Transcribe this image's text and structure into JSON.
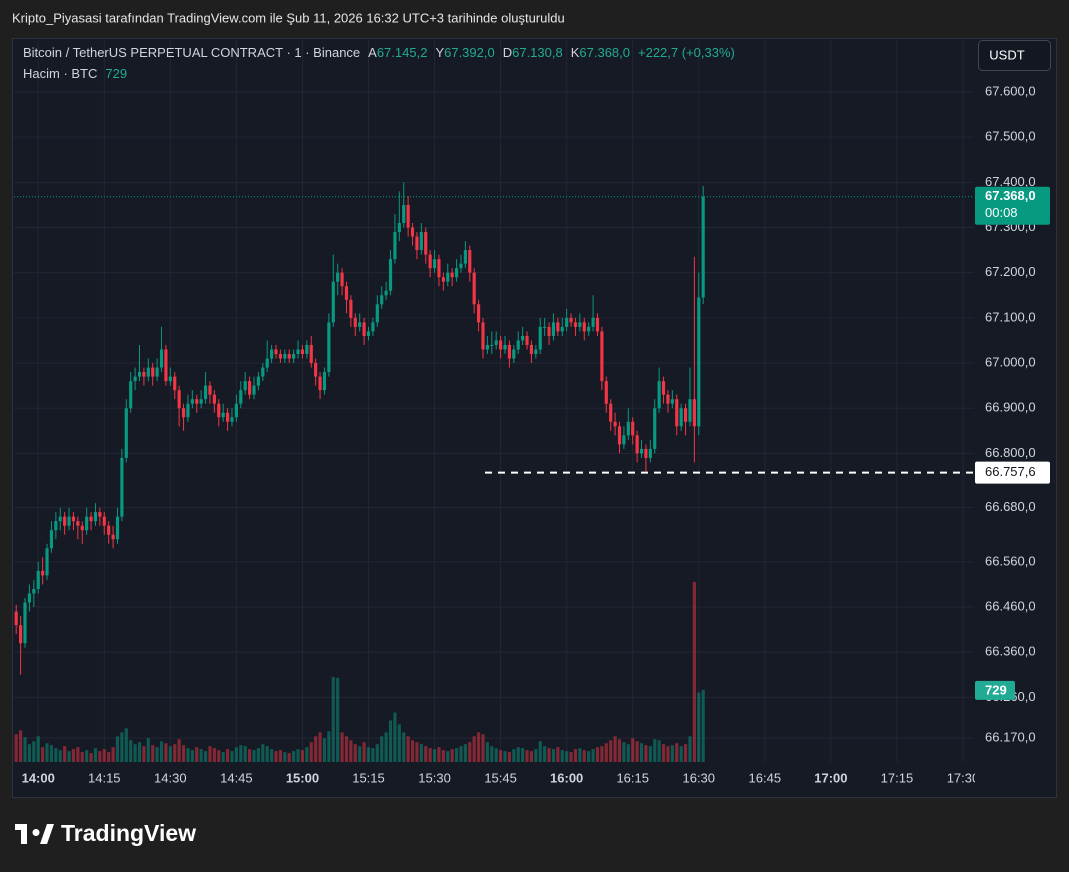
{
  "header": "Kripto_Piyasasi tarafından TradingView.com ile Şub 11, 2026 16:32 UTC+3 tarihinde oluşturuldu",
  "currency_button": "USDT",
  "footer": {
    "brand": "TradingView"
  },
  "chart_data": {
    "type": "candlestick",
    "legend": {
      "symbol": "Bitcoin / TetherUS PERPETUAL CONTRACT · 1 · Binance",
      "ohlc": [
        {
          "label": "A",
          "value": "67.145,2"
        },
        {
          "label": "Y",
          "value": "67.392,0"
        },
        {
          "label": "D",
          "value": "67.130,8"
        },
        {
          "label": "K",
          "value": "67.368,0"
        }
      ],
      "change": "+222,7 (+0,33%)",
      "volume_label": "Hacim · BTC"
    },
    "up_color": "#089981",
    "down_color": "#f23645",
    "grid": true,
    "xlim": [
      -0.5,
      217.5
    ],
    "xticks": [
      {
        "value": 5,
        "label": "14:00"
      },
      {
        "value": 20,
        "label": "14:15"
      },
      {
        "value": 35,
        "label": "14:30"
      },
      {
        "value": 50,
        "label": "14:45"
      },
      {
        "value": 65,
        "label": "15:00"
      },
      {
        "value": 80,
        "label": "15:15"
      },
      {
        "value": 95,
        "label": "15:30"
      },
      {
        "value": 110,
        "label": "15:45"
      },
      {
        "value": 125,
        "label": "16:00"
      },
      {
        "value": 140,
        "label": "16:15"
      },
      {
        "value": 155,
        "label": "16:30"
      },
      {
        "value": 170,
        "label": "16:45"
      },
      {
        "value": 185,
        "label": "17:00"
      },
      {
        "value": 200,
        "label": "17:15"
      },
      {
        "value": 215,
        "label": "17:30"
      }
    ],
    "ylim": [
      66117,
      67715
    ],
    "yticks": [
      {
        "value": 67600,
        "label": "67.600,0"
      },
      {
        "value": 67500,
        "label": "67.500,0"
      },
      {
        "value": 67400,
        "label": "67.400,0"
      },
      {
        "value": 67300,
        "label": "67.300,0"
      },
      {
        "value": 67200,
        "label": "67.200,0"
      },
      {
        "value": 67100,
        "label": "67.100,0"
      },
      {
        "value": 67000,
        "label": "67.000,0"
      },
      {
        "value": 66900,
        "label": "66.900,0"
      },
      {
        "value": 66800,
        "label": "66.800,0"
      },
      {
        "value": 66680,
        "label": "66.680,0"
      },
      {
        "value": 66560,
        "label": "66.560,0"
      },
      {
        "value": 66460,
        "label": "66.460,0"
      },
      {
        "value": 66360,
        "label": "66.360,0"
      },
      {
        "value": 66260,
        "label": "66.260,0"
      },
      {
        "value": 66170,
        "label": "66.170,0"
      }
    ],
    "y2lim": [
      0,
      7300
    ],
    "last_price": {
      "value": 67368,
      "label": "67.368,0"
    },
    "countdown": "00:08",
    "marker_line": {
      "value": 66757.6,
      "label": "66.757,6"
    },
    "values": [
      [
        66450,
        66465,
        66400,
        66420
      ],
      [
        66420,
        66440,
        66310,
        66380
      ],
      [
        66380,
        66480,
        66370,
        66470
      ],
      [
        66470,
        66510,
        66450,
        66490
      ],
      [
        66490,
        66520,
        66460,
        66500
      ],
      [
        66500,
        66560,
        66490,
        66540
      ],
      [
        66540,
        66570,
        66510,
        66530
      ],
      [
        66530,
        66600,
        66520,
        66590
      ],
      [
        66590,
        66650,
        66580,
        66630
      ],
      [
        66630,
        66670,
        66610,
        66650
      ],
      [
        66650,
        66680,
        66630,
        66660
      ],
      [
        66660,
        66670,
        66620,
        66640
      ],
      [
        66640,
        66680,
        66630,
        66660
      ],
      [
        66660,
        66670,
        66630,
        66650
      ],
      [
        66650,
        66660,
        66610,
        66640
      ],
      [
        66640,
        66650,
        66600,
        66630
      ],
      [
        66630,
        66680,
        66620,
        66660
      ],
      [
        66660,
        66670,
        66630,
        66650
      ],
      [
        66650,
        66690,
        66640,
        66670
      ],
      [
        66670,
        66680,
        66640,
        66660
      ],
      [
        66660,
        66670,
        66620,
        66640
      ],
      [
        66640,
        66650,
        66600,
        66620
      ],
      [
        66620,
        66640,
        66590,
        66610
      ],
      [
        66610,
        66680,
        66600,
        66660
      ],
      [
        66660,
        66810,
        66650,
        66790
      ],
      [
        66790,
        66920,
        66780,
        66900
      ],
      [
        66900,
        66980,
        66890,
        66960
      ],
      [
        66960,
        66990,
        66940,
        66970
      ],
      [
        66970,
        67040,
        66960,
        66980
      ],
      [
        66980,
        66990,
        66950,
        66970
      ],
      [
        66970,
        67010,
        66960,
        66990
      ],
      [
        66990,
        67000,
        66950,
        66970
      ],
      [
        66970,
        67010,
        66960,
        66990
      ],
      [
        66990,
        67080,
        66980,
        67030
      ],
      [
        67030,
        67040,
        66950,
        66960
      ],
      [
        66960,
        66990,
        66950,
        66970
      ],
      [
        66970,
        66980,
        66920,
        66940
      ],
      [
        66940,
        66950,
        66860,
        66900
      ],
      [
        66900,
        66910,
        66850,
        66880
      ],
      [
        66880,
        66930,
        66870,
        66910
      ],
      [
        66910,
        66940,
        66900,
        66920
      ],
      [
        66920,
        66930,
        66890,
        66910
      ],
      [
        66910,
        66940,
        66900,
        66920
      ],
      [
        66920,
        66980,
        66910,
        66950
      ],
      [
        66950,
        66960,
        66910,
        66930
      ],
      [
        66930,
        66940,
        66890,
        66910
      ],
      [
        66910,
        66920,
        66860,
        66880
      ],
      [
        66880,
        66910,
        66870,
        66890
      ],
      [
        66890,
        66900,
        66850,
        66870
      ],
      [
        66870,
        66900,
        66860,
        66880
      ],
      [
        66880,
        66930,
        66870,
        66910
      ],
      [
        66910,
        66960,
        66900,
        66940
      ],
      [
        66940,
        66980,
        66930,
        66960
      ],
      [
        66960,
        66970,
        66920,
        66930
      ],
      [
        66930,
        66970,
        66920,
        66950
      ],
      [
        66950,
        66980,
        66940,
        66970
      ],
      [
        66970,
        67000,
        66960,
        66990
      ],
      [
        66990,
        67050,
        66980,
        67010
      ],
      [
        67010,
        67040,
        67000,
        67030
      ],
      [
        67030,
        67040,
        67010,
        67020
      ],
      [
        67020,
        67030,
        67000,
        67010
      ],
      [
        67010,
        67030,
        67000,
        67020
      ],
      [
        67020,
        67030,
        67000,
        67010
      ],
      [
        67010,
        67030,
        67000,
        67020
      ],
      [
        67020,
        67050,
        67010,
        67030
      ],
      [
        67030,
        67040,
        67010,
        67020
      ],
      [
        67020,
        67050,
        67010,
        67040
      ],
      [
        67040,
        67060,
        66990,
        67000
      ],
      [
        67000,
        67010,
        66950,
        66970
      ],
      [
        66970,
        66980,
        66920,
        66940
      ],
      [
        66940,
        66990,
        66930,
        66980
      ],
      [
        66980,
        67110,
        66970,
        67090
      ],
      [
        67090,
        67240,
        67080,
        67180
      ],
      [
        67180,
        67220,
        67150,
        67200
      ],
      [
        67200,
        67210,
        67150,
        67170
      ],
      [
        67170,
        67180,
        67110,
        67140
      ],
      [
        67140,
        67150,
        67080,
        67100
      ],
      [
        67100,
        67110,
        67060,
        67080
      ],
      [
        67080,
        67110,
        67070,
        67090
      ],
      [
        67090,
        67100,
        67040,
        67060
      ],
      [
        67060,
        67080,
        67050,
        67070
      ],
      [
        67070,
        67100,
        67060,
        67090
      ],
      [
        67090,
        67150,
        67080,
        67130
      ],
      [
        67130,
        67170,
        67120,
        67150
      ],
      [
        67150,
        67180,
        67140,
        67160
      ],
      [
        67160,
        67250,
        67150,
        67230
      ],
      [
        67230,
        67330,
        67220,
        67290
      ],
      [
        67290,
        67380,
        67270,
        67310
      ],
      [
        67310,
        67400,
        67300,
        67350
      ],
      [
        67350,
        67370,
        67280,
        67300
      ],
      [
        67300,
        67310,
        67260,
        67280
      ],
      [
        67280,
        67290,
        67230,
        67250
      ],
      [
        67250,
        67310,
        67240,
        67290
      ],
      [
        67290,
        67300,
        67220,
        67240
      ],
      [
        67240,
        67250,
        67190,
        67210
      ],
      [
        67210,
        67250,
        67200,
        67230
      ],
      [
        67230,
        67240,
        67170,
        67190
      ],
      [
        67190,
        67200,
        67160,
        67180
      ],
      [
        67180,
        67220,
        67170,
        67200
      ],
      [
        67200,
        67210,
        67170,
        67190
      ],
      [
        67190,
        67230,
        67180,
        67210
      ],
      [
        67210,
        67240,
        67200,
        67220
      ],
      [
        67220,
        67270,
        67210,
        67250
      ],
      [
        67250,
        67260,
        67180,
        67200
      ],
      [
        67200,
        67210,
        67110,
        67130
      ],
      [
        67130,
        67140,
        67070,
        67090
      ],
      [
        67090,
        67100,
        67010,
        67030
      ],
      [
        67030,
        67060,
        67020,
        67040
      ],
      [
        67040,
        67070,
        67020,
        67040
      ],
      [
        67040,
        67070,
        67030,
        67050
      ],
      [
        67050,
        67060,
        67010,
        67030
      ],
      [
        67030,
        67060,
        67020,
        67040
      ],
      [
        67040,
        67050,
        66990,
        67010
      ],
      [
        67010,
        67040,
        67000,
        67030
      ],
      [
        67030,
        67070,
        67020,
        67050
      ],
      [
        67050,
        67080,
        67040,
        67060
      ],
      [
        67060,
        67070,
        67030,
        67040
      ],
      [
        67040,
        67050,
        67000,
        67020
      ],
      [
        67020,
        67040,
        67010,
        67030
      ],
      [
        67030,
        67100,
        67020,
        67080
      ],
      [
        67080,
        67100,
        67060,
        67080
      ],
      [
        67080,
        67090,
        67040,
        67060
      ],
      [
        67060,
        67110,
        67050,
        67090
      ],
      [
        67090,
        67100,
        67060,
        67070
      ],
      [
        67070,
        67100,
        67060,
        67080
      ],
      [
        67080,
        67120,
        67070,
        67100
      ],
      [
        67100,
        67110,
        67080,
        67090
      ],
      [
        67090,
        67100,
        67060,
        67080
      ],
      [
        67080,
        67110,
        67070,
        67090
      ],
      [
        67090,
        67100,
        67050,
        67070
      ],
      [
        67070,
        67090,
        67060,
        67080
      ],
      [
        67080,
        67150,
        67070,
        67100
      ],
      [
        67100,
        67110,
        67060,
        67070
      ],
      [
        67070,
        67080,
        66940,
        66960
      ],
      [
        66960,
        66970,
        66890,
        66910
      ],
      [
        66910,
        66920,
        66850,
        66870
      ],
      [
        66870,
        66890,
        66840,
        66860
      ],
      [
        66860,
        66870,
        66800,
        66820
      ],
      [
        66820,
        66860,
        66810,
        66840
      ],
      [
        66840,
        66900,
        66830,
        66870
      ],
      [
        66870,
        66880,
        66820,
        66840
      ],
      [
        66840,
        66850,
        66780,
        66800
      ],
      [
        66800,
        66830,
        66790,
        66810
      ],
      [
        66810,
        66820,
        66760,
        66790
      ],
      [
        66790,
        66830,
        66780,
        66810
      ],
      [
        66810,
        66920,
        66800,
        66900
      ],
      [
        66900,
        66990,
        66890,
        66960
      ],
      [
        66960,
        66970,
        66910,
        66930
      ],
      [
        66930,
        66940,
        66890,
        66910
      ],
      [
        66910,
        66940,
        66900,
        66920
      ],
      [
        66920,
        66930,
        66840,
        66860
      ],
      [
        66860,
        66910,
        66850,
        66900
      ],
      [
        66900,
        66910,
        66840,
        66870
      ],
      [
        66870,
        66990,
        66860,
        66920
      ],
      [
        66920,
        67235,
        66780,
        66860
      ],
      [
        66860,
        67200,
        66840,
        67145.2
      ],
      [
        67145.2,
        67392,
        67130.8,
        67368
      ]
    ],
    "volume": [
      280,
      320,
      250,
      180,
      210,
      260,
      150,
      190,
      170,
      140,
      120,
      160,
      110,
      130,
      150,
      100,
      120,
      90,
      140,
      110,
      130,
      100,
      150,
      260,
      300,
      340,
      220,
      180,
      200,
      160,
      240,
      170,
      150,
      210,
      190,
      160,
      180,
      230,
      170,
      140,
      120,
      150,
      130,
      110,
      160,
      140,
      120,
      100,
      130,
      110,
      150,
      170,
      160,
      130,
      120,
      140,
      180,
      160,
      130,
      110,
      120,
      100,
      90,
      110,
      130,
      120,
      150,
      200,
      260,
      300,
      240,
      310,
      860,
      850,
      300,
      260,
      220,
      180,
      160,
      200,
      150,
      140,
      180,
      260,
      300,
      420,
      500,
      380,
      300,
      260,
      220,
      200,
      180,
      160,
      140,
      130,
      150,
      120,
      110,
      130,
      140,
      160,
      180,
      200,
      260,
      300,
      280,
      200,
      160,
      140,
      120,
      110,
      100,
      130,
      150,
      140,
      120,
      110,
      130,
      210,
      160,
      140,
      130,
      150,
      120,
      110,
      100,
      130,
      140,
      120,
      110,
      130,
      150,
      160,
      190,
      220,
      260,
      230,
      200,
      180,
      240,
      210,
      190,
      170,
      160,
      230,
      220,
      180,
      160,
      170,
      190,
      160,
      180,
      260,
      1820,
      700,
      729
    ]
  }
}
